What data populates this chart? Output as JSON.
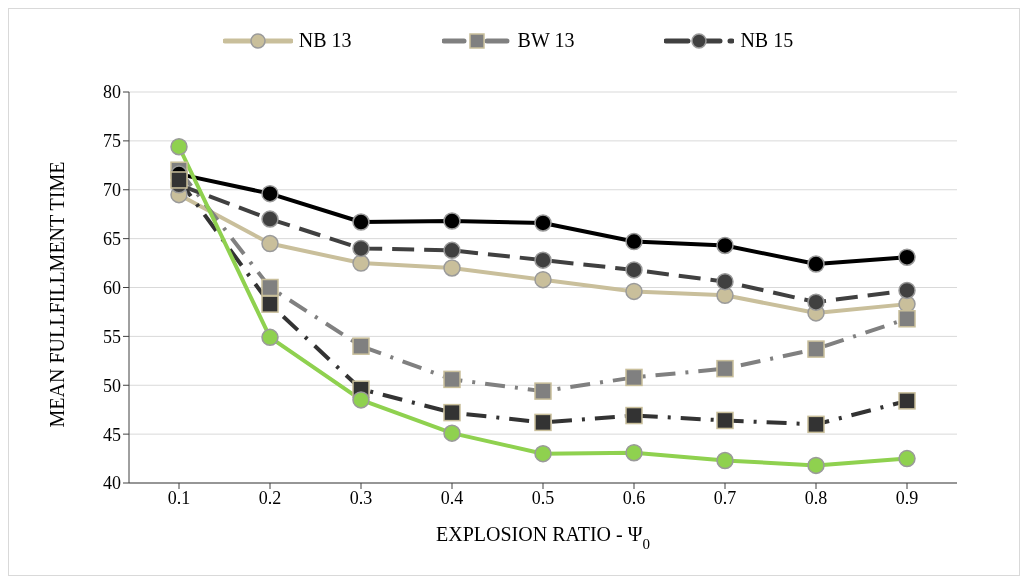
{
  "chart_data": {
    "type": "line",
    "xlabel": "EXPLOSION RATIO - Ψ$_{0}$",
    "ylabel": "MEAN FULLFILLMENT TIME",
    "categories": [
      "0.1",
      "0.2",
      "0.3",
      "0.4",
      "0.5",
      "0.6",
      "0.7",
      "0.8",
      "0.9"
    ],
    "ylim": [
      40,
      80
    ],
    "yticks": [
      40,
      45,
      50,
      55,
      60,
      65,
      70,
      75,
      80
    ],
    "grid": "y",
    "legend": "top",
    "series": [
      {
        "name": "NB 13",
        "color": "#c9bf9b",
        "marker": "circle",
        "line_style": "solid",
        "values": [
          69.5,
          64.5,
          62.5,
          62,
          60.8,
          59.6,
          59.2,
          57.4,
          58.3
        ]
      },
      {
        "name": "BW 13",
        "color": "#808080",
        "marker": "square",
        "line_style": "dotted",
        "values": [
          72,
          60,
          54,
          50.6,
          49.4,
          50.8,
          51.7,
          53.7,
          56.8
        ]
      },
      {
        "name": "NB 15",
        "color": "#404040",
        "marker": "circle",
        "line_style": "dashed",
        "values": [
          70.5,
          67,
          64,
          63.8,
          62.8,
          61.8,
          60.6,
          58.5,
          59.7
        ]
      },
      {
        "color": "#000000",
        "marker": "circle",
        "line_style": "solid",
        "values": [
          71.6,
          69.6,
          66.7,
          66.8,
          66.6,
          64.7,
          64.3,
          62.4,
          63.1
        ]
      },
      {
        "color": "#333333",
        "marker": "square",
        "line_style": "dotted",
        "values": [
          71,
          58.3,
          49.6,
          47.2,
          46.2,
          46.9,
          46.4,
          46,
          48.4
        ]
      },
      {
        "color": "#8fd14f",
        "marker": "circle",
        "line_style": "solid",
        "values": [
          74.4,
          54.9,
          48.5,
          45.1,
          43,
          43.1,
          42.3,
          41.8,
          42.5
        ]
      }
    ]
  }
}
